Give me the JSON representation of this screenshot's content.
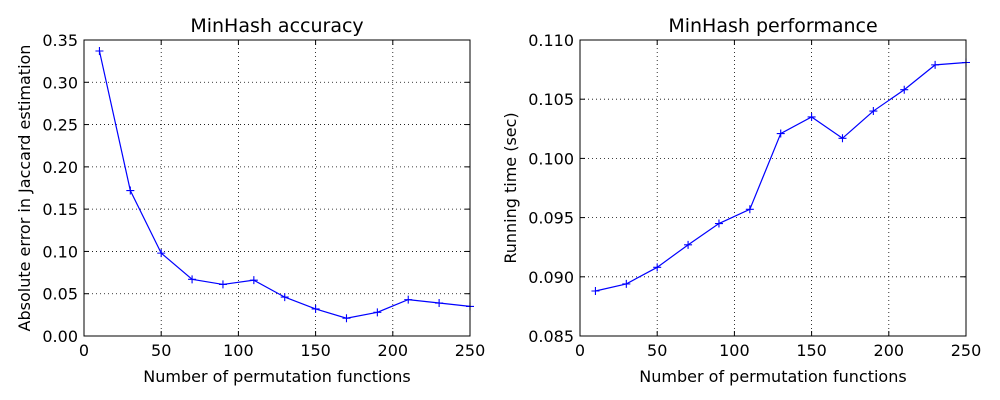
{
  "chart_data": [
    {
      "type": "line",
      "title": "MinHash accuracy",
      "xlabel": "Number of permutation functions",
      "ylabel": "Absolute error in Jaccard estimation",
      "xlim": [
        0,
        250
      ],
      "ylim": [
        0,
        0.35
      ],
      "xticks": [
        "0",
        "50",
        "100",
        "150",
        "200",
        "250"
      ],
      "yticks": [
        "0.00",
        "0.05",
        "0.10",
        "0.15",
        "0.20",
        "0.25",
        "0.30",
        "0.35"
      ],
      "grid": true,
      "marker": "+",
      "line_color": "#0000ff",
      "series": [
        {
          "x": [
            10,
            30,
            50,
            70,
            90,
            110,
            130,
            150,
            170,
            190,
            210,
            230,
            250
          ],
          "values": [
            0.337,
            0.172,
            0.098,
            0.067,
            0.061,
            0.066,
            0.046,
            0.032,
            0.021,
            0.028,
            0.043,
            0.039,
            0.035
          ]
        }
      ]
    },
    {
      "type": "line",
      "title": "MinHash performance",
      "xlabel": "Number of permutation functions",
      "ylabel": "Running time (sec)",
      "xlim": [
        0,
        250
      ],
      "ylim": [
        0.085,
        0.11
      ],
      "xticks": [
        "0",
        "50",
        "100",
        "150",
        "200",
        "250"
      ],
      "yticks": [
        "0.085",
        "0.090",
        "0.095",
        "0.100",
        "0.105",
        "0.110"
      ],
      "grid": true,
      "marker": "+",
      "line_color": "#0000ff",
      "series": [
        {
          "x": [
            10,
            30,
            50,
            70,
            90,
            110,
            130,
            150,
            170,
            190,
            210,
            230,
            250
          ],
          "values": [
            0.0888,
            0.0894,
            0.0908,
            0.0927,
            0.0945,
            0.0957,
            0.1021,
            0.1035,
            0.1017,
            0.104,
            0.1058,
            0.1079,
            0.1081
          ]
        }
      ]
    }
  ]
}
